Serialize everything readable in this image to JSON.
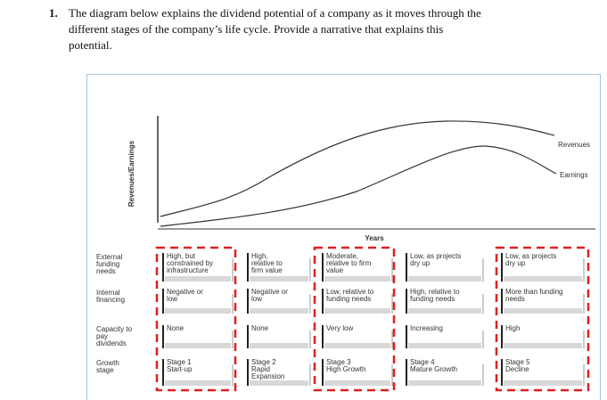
{
  "question": {
    "number": "1.",
    "lines": [
      "The diagram below explains the dividend potential of a company as it moves through the",
      "different stages of the company’s life cycle. Provide a narrative that explains this",
      "potential."
    ]
  },
  "diagram": {
    "y_axis_label": "Revenues/Earnings",
    "x_axis_label": "Years",
    "revenues_label": "Revenues",
    "earnings_label": "Earnings",
    "rows": [
      {
        "label": [
          "External",
          "funding",
          "needs"
        ],
        "cells": [
          [
            "High, but",
            "constrained by",
            "infrastructure"
          ],
          [
            "High,",
            "relative to",
            "firm value"
          ],
          [
            "Moderate,",
            "relative to firm",
            "value"
          ],
          [
            "Low, as projects",
            "dry up"
          ],
          [
            "Low, as projects",
            "dry up"
          ]
        ]
      },
      {
        "label": [
          "Internal",
          "financing"
        ],
        "cells": [
          [
            "Negative or",
            "low"
          ],
          [
            "Negative or",
            "low"
          ],
          [
            "Low, relative to",
            "funding needs"
          ],
          [
            "High, relative to",
            "funding needs"
          ],
          [
            "More than funding",
            "needs"
          ]
        ]
      },
      {
        "label": [
          "Capacity to",
          "pay",
          "dividends"
        ],
        "cells": [
          [
            "None"
          ],
          [
            "None"
          ],
          [
            "Very low"
          ],
          [
            "Increasing"
          ],
          [
            "High"
          ]
        ]
      },
      {
        "label": [
          "Growth",
          "stage"
        ],
        "cells": [
          [
            "Stage 1",
            "Start-up"
          ],
          [
            "Stage 2",
            "Rapid",
            "Expansion"
          ],
          [
            "Stage 3",
            "High Growth"
          ],
          [
            "Stage 4",
            "Mature Growth"
          ],
          [
            "Stage 5",
            "Decline"
          ]
        ]
      }
    ]
  }
}
